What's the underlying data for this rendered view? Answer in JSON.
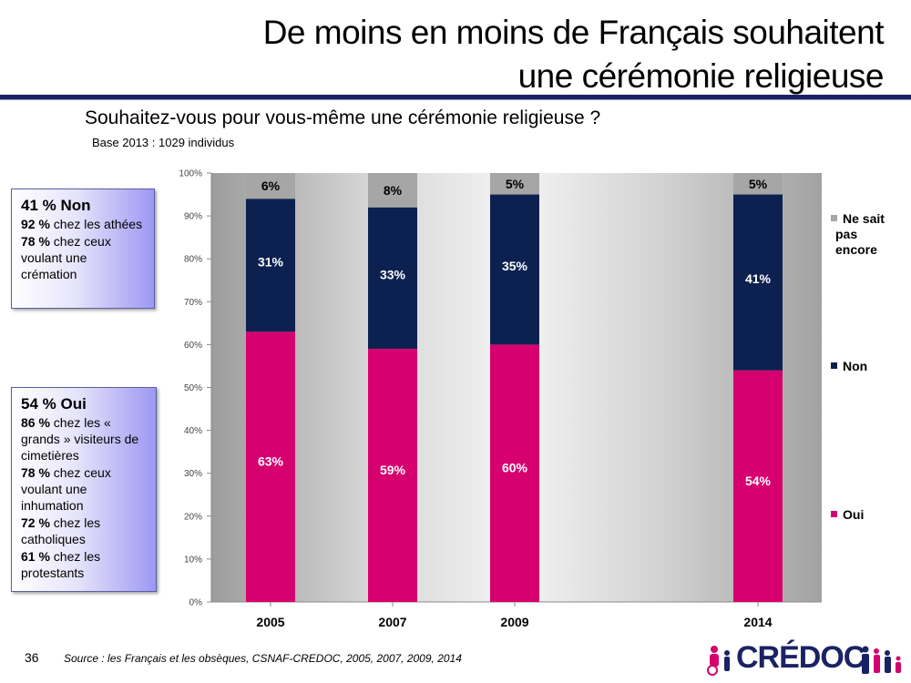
{
  "header": {
    "title_line1": "De moins en moins de Français souhaitent",
    "title_line2": "une cérémonie religieuse"
  },
  "question": "Souhaitez-vous pour vous-même une cérémonie religieuse ?",
  "base": "Base 2013 : 1029 individus",
  "box_non": {
    "head": "41 % Non",
    "lines": [
      {
        "pct": "92 %",
        "text": " chez les athées"
      },
      {
        "pct": "78 %",
        "text": " chez ceux voulant une crémation"
      }
    ]
  },
  "box_oui": {
    "head": "54 % Oui",
    "lines": [
      {
        "pct": "86 %",
        "text": " chez les « grands » visiteurs de cimetières"
      },
      {
        "pct": "78 %",
        "text": " chez ceux voulant une inhumation"
      },
      {
        "pct": "72 %",
        "text": " chez les catholiques"
      },
      {
        "pct": "61 %",
        "text": " chez les protestants"
      }
    ]
  },
  "chart_data": {
    "type": "bar",
    "stacked": true,
    "categories": [
      "2005",
      "2007",
      "2009",
      "2014"
    ],
    "series": [
      {
        "name": "Oui",
        "values": [
          63,
          59,
          60,
          54
        ],
        "labels": [
          "63%",
          "59%",
          "60%",
          "54%"
        ],
        "color": "#d6006f"
      },
      {
        "name": "Non",
        "values": [
          31,
          33,
          35,
          41
        ],
        "labels": [
          "31%",
          "33%",
          "35%",
          "41%"
        ],
        "color": "#0c2150"
      },
      {
        "name": "Ne sait pas encore",
        "values": [
          6,
          8,
          5,
          5
        ],
        "labels": [
          "6%",
          "8%",
          "5%",
          "5%"
        ],
        "color": "#a6a6a6"
      }
    ],
    "ylim": [
      0,
      100
    ],
    "yticks": [
      "0%",
      "10%",
      "20%",
      "30%",
      "40%",
      "50%",
      "60%",
      "70%",
      "80%",
      "90%",
      "100%"
    ],
    "legend": [
      "Ne sait pas encore",
      "Non",
      "Oui"
    ],
    "legend_placement": "right"
  },
  "legend": {
    "nsp_line1": "Ne sait",
    "nsp_line2": "pas",
    "nsp_line3": "encore",
    "non": "Non",
    "oui": "Oui"
  },
  "footer": {
    "page_number": "36",
    "source": "Source : les Français et les obsèques, CSNAF-CREDOC, 2005, 2007, 2009, 2014",
    "logo_text": "CRÉDOC"
  }
}
